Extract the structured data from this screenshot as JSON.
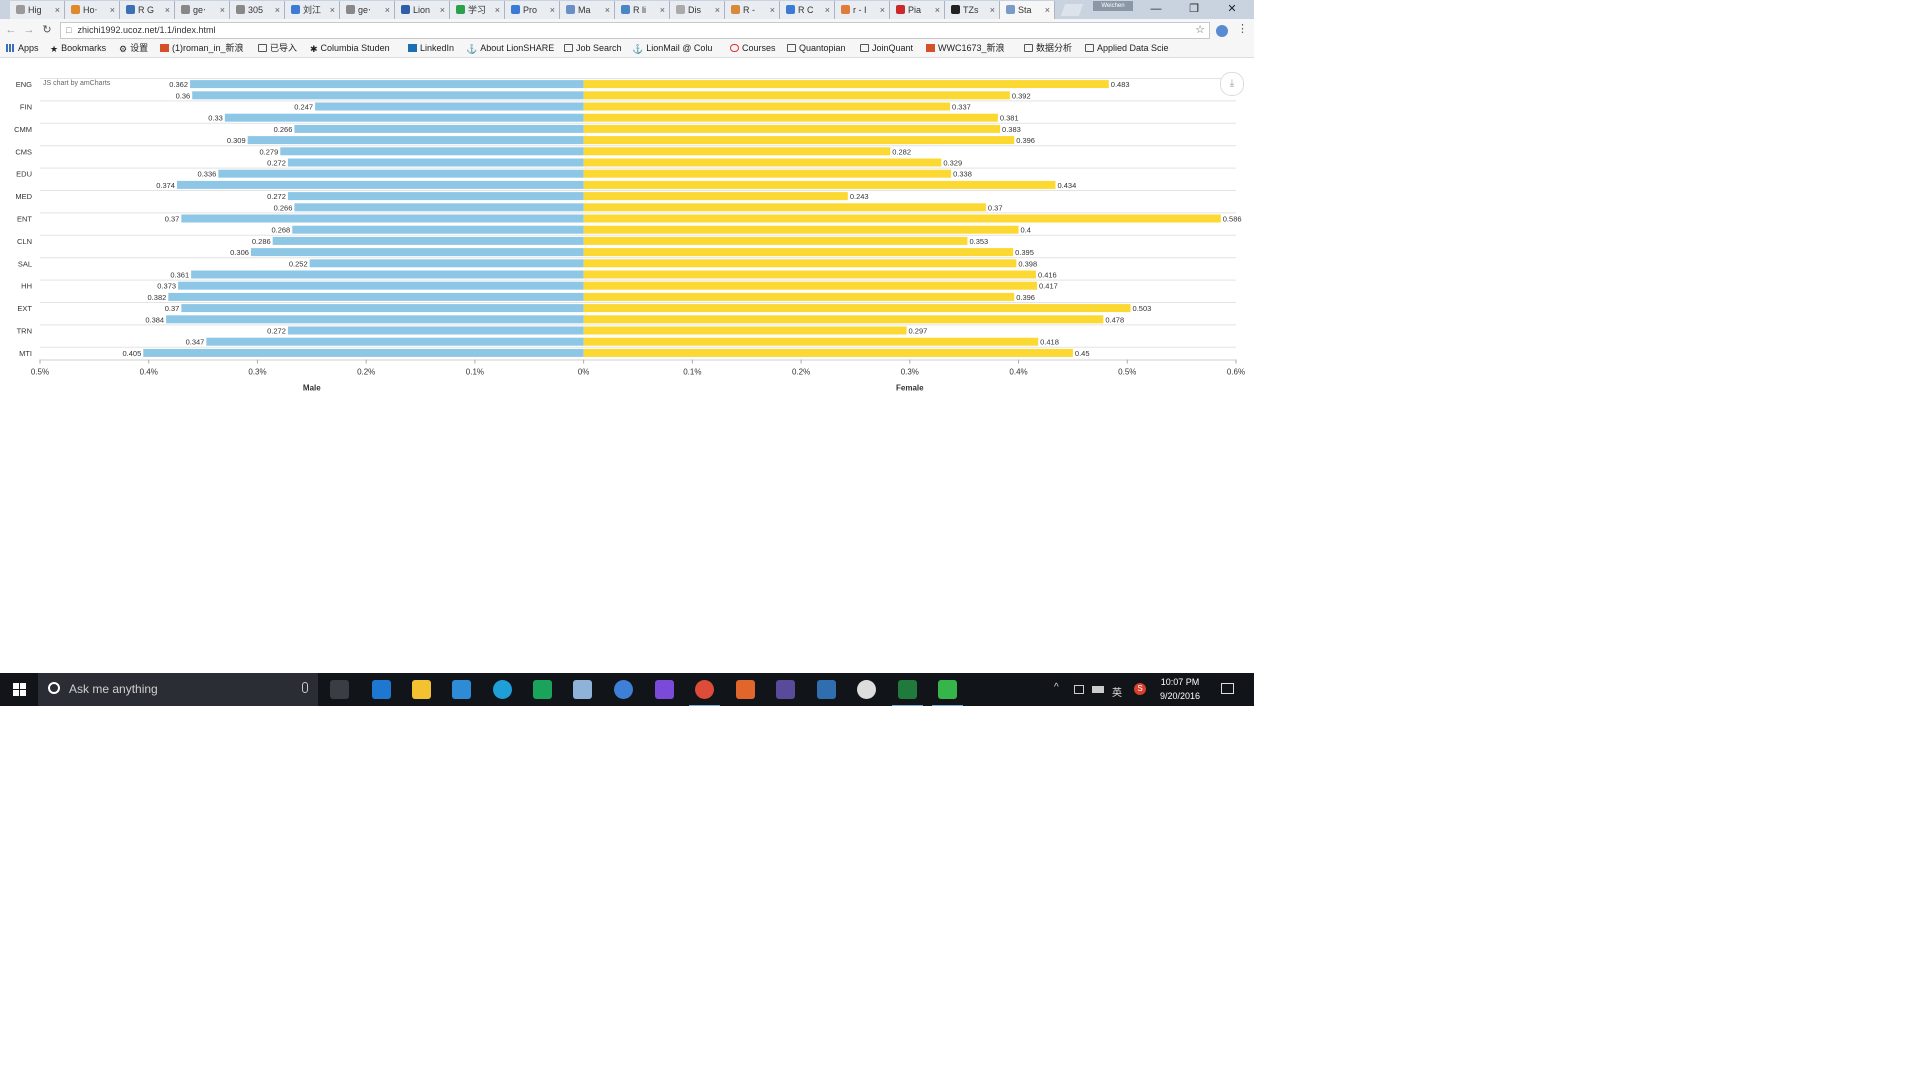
{
  "browser": {
    "tabs": [
      {
        "label": "Hig",
        "fav": "#9a9a9a"
      },
      {
        "label": "Ho‧",
        "fav": "#e08a2c"
      },
      {
        "label": "R G",
        "fav": "#3b6fb6"
      },
      {
        "label": "ge‧",
        "fav": "#888888"
      },
      {
        "label": "305",
        "fav": "#888888"
      },
      {
        "label": "刘江",
        "fav": "#3c7bd6"
      },
      {
        "label": "ge‧",
        "fav": "#888888"
      },
      {
        "label": "Lion",
        "fav": "#2f5fa8"
      },
      {
        "label": "学习",
        "fav": "#2aa14a"
      },
      {
        "label": "Pro",
        "fav": "#3a7bd5"
      },
      {
        "label": "Ma",
        "fav": "#6a8fc8"
      },
      {
        "label": "R li",
        "fav": "#4a86c7"
      },
      {
        "label": "Dis",
        "fav": "#aaaaaa"
      },
      {
        "label": "R -",
        "fav": "#d88a3a"
      },
      {
        "label": "R C",
        "fav": "#3a7bd5"
      },
      {
        "label": "r - I",
        "fav": "#e07b39"
      },
      {
        "label": "Pia",
        "fav": "#cc2a2a"
      },
      {
        "label": "TZs",
        "fav": "#222222"
      },
      {
        "label": "Sta",
        "fav": "#7a9ac8",
        "active": true
      }
    ],
    "user_chip": "Weichen",
    "window_controls": {
      "minimize": "—",
      "restore": "❐",
      "close": "✕"
    },
    "nav": {
      "back": "←",
      "forward": "→",
      "reload": "↻"
    },
    "url": "zhichi1992.ucoz.net/1.1/index.html",
    "star_icon": "☆",
    "menu_icon": "⋮",
    "bookmarks": [
      {
        "label": "Apps",
        "icon": "apps-icon"
      },
      {
        "label": "Bookmarks",
        "icon": "star-icon"
      },
      {
        "label": "设置",
        "icon": "gear-icon"
      },
      {
        "label": "(1)roman_in_新浪",
        "icon": "app-icon"
      },
      {
        "label": "已导入",
        "icon": "folder-icon"
      },
      {
        "label": "Columbia Studen",
        "icon": "crown-icon"
      },
      {
        "label": "LinkedIn",
        "icon": "linkedin-icon"
      },
      {
        "label": "About LionSHARE",
        "icon": "lion-icon"
      },
      {
        "label": "Job Search",
        "icon": "folder-icon"
      },
      {
        "label": "LionMail @ Colu",
        "icon": "lion-icon"
      },
      {
        "label": "Courses",
        "icon": "courses-icon"
      },
      {
        "label": "Quantopian",
        "icon": "folder-icon"
      },
      {
        "label": "JoinQuant",
        "icon": "folder-icon"
      },
      {
        "label": "WWC1673_新浪",
        "icon": "app-icon"
      },
      {
        "label": "数据分析",
        "icon": "folder-icon"
      },
      {
        "label": "Applied Data Scie",
        "icon": "folder-icon"
      }
    ]
  },
  "chart": {
    "credit": "JS chart by amCharts",
    "export_icon": "⤓"
  },
  "chart_data": {
    "type": "bar",
    "orientation": "horizontal-diverging",
    "groups": [
      "ENG",
      "FIN",
      "CMM",
      "CMS",
      "EDU",
      "MED",
      "ENT",
      "CLN",
      "SAL",
      "HH",
      "EXT",
      "TRN",
      "MTI"
    ],
    "group_label_rows": [
      0,
      2,
      4,
      6,
      8,
      10,
      12,
      14,
      16,
      18,
      20,
      22,
      24
    ],
    "series": [
      {
        "name": "Male",
        "color": "#8ec7e6",
        "values": [
          0.362,
          0.36,
          0.247,
          0.33,
          0.266,
          0.309,
          0.279,
          0.272,
          0.336,
          0.374,
          0.272,
          0.266,
          0.37,
          0.268,
          0.286,
          0.306,
          0.252,
          0.361,
          0.373,
          0.382,
          0.37,
          0.384,
          0.272,
          0.347,
          0.405
        ]
      },
      {
        "name": "Female",
        "color": "#fcd932",
        "values": [
          0.483,
          0.392,
          0.337,
          0.381,
          0.383,
          0.396,
          0.282,
          0.329,
          0.338,
          0.434,
          0.243,
          0.37,
          0.586,
          0.4,
          0.353,
          0.395,
          0.398,
          0.416,
          0.417,
          0.396,
          0.503,
          0.478,
          0.297,
          0.418,
          0.45
        ]
      }
    ],
    "value_labels": {
      "Male": [
        "0.362",
        "0.36",
        "0.247",
        "0.33",
        "0.266",
        "0.309",
        "0.279",
        "0.272",
        "0.336",
        "0.374",
        "0.272",
        "0.266",
        "0.37",
        "0.268",
        "0.286",
        "0.306",
        "0.252",
        "0.361",
        "0.373",
        "0.382",
        "0.37",
        "0.384",
        "0.272",
        "0.347",
        "0.405"
      ],
      "Female": [
        "0.483",
        "0.392",
        "0.337",
        "0.381",
        "0.383",
        "0.396",
        "0.282",
        "0.329",
        "0.338",
        "0.434",
        "0.243",
        "0.37",
        "0.586",
        "0.4",
        "0.353",
        "0.395",
        "0.398",
        "0.416",
        "0.417",
        "0.396",
        "0.503",
        "0.478",
        "0.297",
        "0.418",
        "0.45"
      ]
    },
    "x_ticks": [
      -0.5,
      -0.4,
      -0.3,
      -0.2,
      -0.1,
      0,
      0.1,
      0.2,
      0.3,
      0.4,
      0.5,
      0.6
    ],
    "x_tick_labels": [
      "0.5%",
      "0.4%",
      "0.3%",
      "0.2%",
      "0.1%",
      "0%",
      "0.1%",
      "0.2%",
      "0.3%",
      "0.4%",
      "0.5%",
      "0.6%"
    ],
    "xlim": [
      -0.5,
      0.6
    ],
    "xlabel_left": "Male",
    "xlabel_right": "Female",
    "grid": true
  },
  "taskbar": {
    "search_placeholder": "Ask me anything",
    "icons": [
      {
        "name": "task-view-icon",
        "color": "#3a3d44"
      },
      {
        "name": "edge-icon",
        "color": "#1e78d2"
      },
      {
        "name": "file-explorer-icon",
        "color": "#f2c230"
      },
      {
        "name": "store-icon",
        "color": "#2e8bd6"
      },
      {
        "name": "kingsoft-icon",
        "color": "#1f9fd8"
      },
      {
        "name": "green-app-icon",
        "color": "#1aa35a"
      },
      {
        "name": "paint-icon",
        "color": "#8fb3d8"
      },
      {
        "name": "r-app-icon",
        "color": "#3e7fd8"
      },
      {
        "name": "visual-studio-icon",
        "color": "#7c4ad8"
      },
      {
        "name": "chrome-icon",
        "color": "#dd4b39"
      },
      {
        "name": "matlab-icon",
        "color": "#e0662c"
      },
      {
        "name": "eclipse-icon",
        "color": "#5a4a9a"
      },
      {
        "name": "mysql-icon",
        "color": "#2f6fb0"
      },
      {
        "name": "github-icon",
        "color": "#dddddd"
      },
      {
        "name": "excel-icon",
        "color": "#1f7a3c"
      },
      {
        "name": "wechat-icon",
        "color": "#35b54a"
      }
    ],
    "tray": {
      "chevron": "^",
      "lang": "英",
      "sogou": "S"
    },
    "time": "10:07 PM",
    "date": "9/20/2016"
  }
}
